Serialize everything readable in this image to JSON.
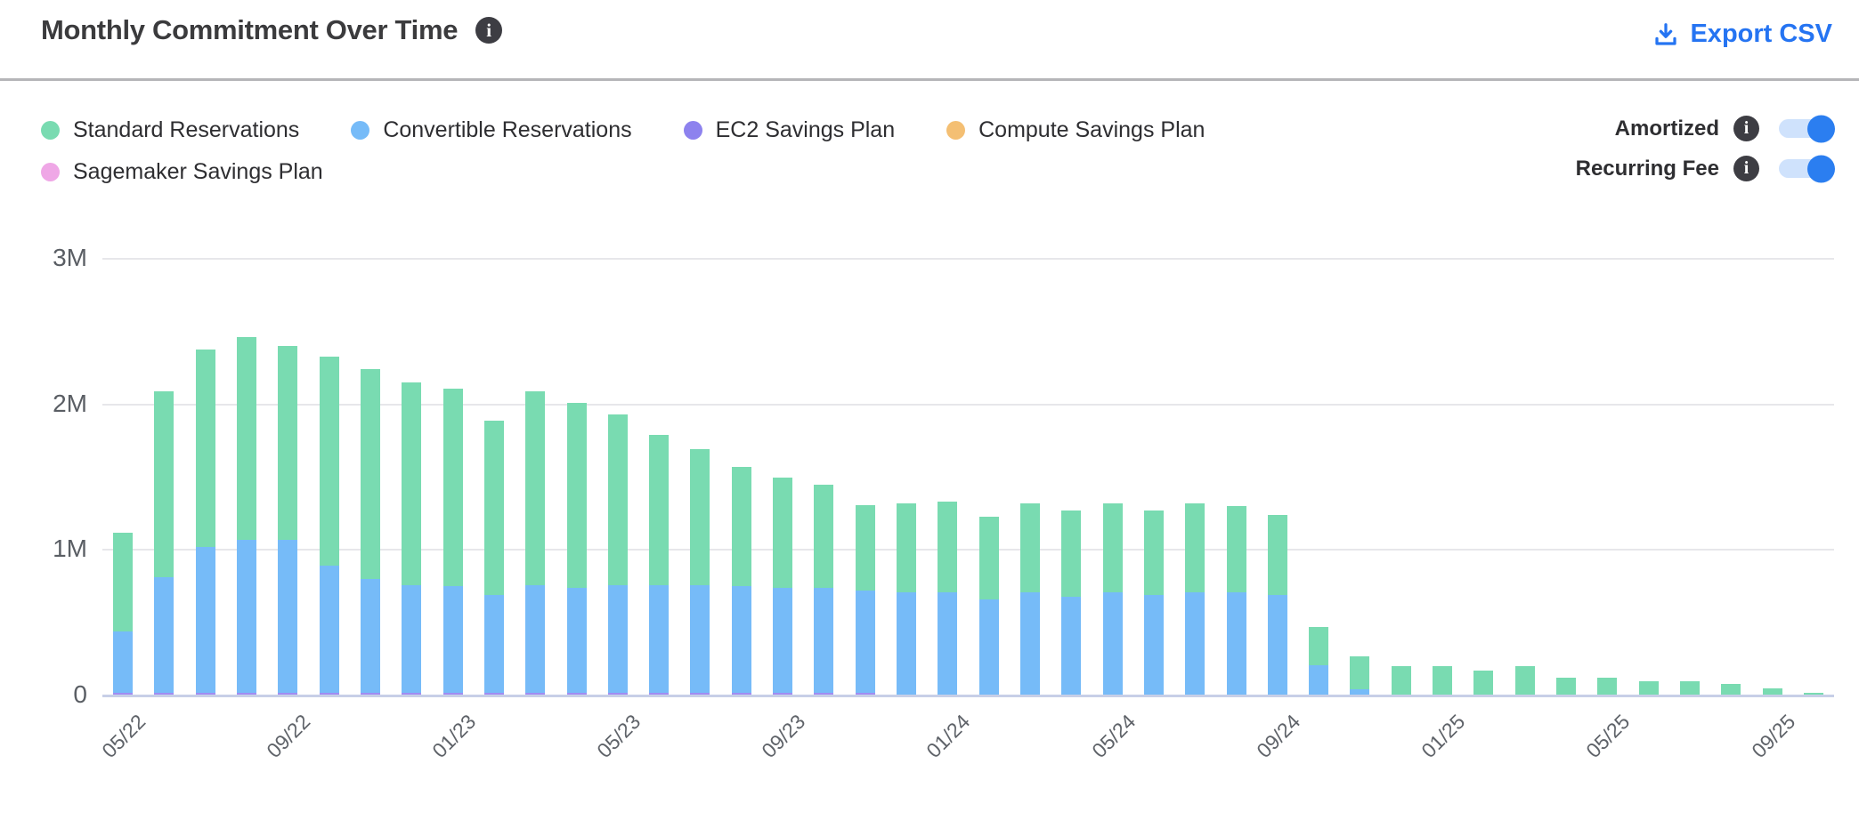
{
  "header": {
    "title": "Monthly Commitment Over Time",
    "export_label": "Export CSV"
  },
  "legend": [
    {
      "label": "Standard Reservations",
      "color": "#79dbb1"
    },
    {
      "label": "Convertible Reservations",
      "color": "#76bbf8"
    },
    {
      "label": "EC2 Savings Plan",
      "color": "#8d82ee"
    },
    {
      "label": "Compute Savings Plan",
      "color": "#f4bf73"
    },
    {
      "label": "Sagemaker Savings Plan",
      "color": "#efa7e6"
    }
  ],
  "toggles": [
    {
      "label": "Amortized",
      "state": "on"
    },
    {
      "label": "Recurring Fee",
      "state": "on"
    }
  ],
  "colors": {
    "accent_blue": "#2574f2",
    "toggle_knob": "#2b7ef0",
    "toggle_track": "#cfe2fc",
    "gridline": "#e7e7ea",
    "axis_baseline": "#c7cfe7",
    "axis_text": "#5f6369"
  },
  "chart_data": {
    "type": "bar",
    "subtype": "stacked",
    "unit": "millions",
    "ymax": 3,
    "y_ticks": [
      {
        "value": 0,
        "label": "0"
      },
      {
        "value": 1,
        "label": "1M"
      },
      {
        "value": 2,
        "label": "2M"
      },
      {
        "value": 3,
        "label": "3M"
      }
    ],
    "x_tick_every": 4,
    "grid": true,
    "legend_position": "top-left",
    "categories": [
      "05/22",
      "06/22",
      "07/22",
      "08/22",
      "09/22",
      "10/22",
      "11/22",
      "12/22",
      "01/23",
      "02/23",
      "03/23",
      "04/23",
      "05/23",
      "06/23",
      "07/23",
      "08/23",
      "09/23",
      "10/23",
      "11/23",
      "12/23",
      "01/24",
      "02/24",
      "03/24",
      "04/24",
      "05/24",
      "06/24",
      "07/24",
      "08/24",
      "09/24",
      "10/24",
      "11/24",
      "12/24",
      "01/25",
      "02/25",
      "03/25",
      "04/25",
      "05/25",
      "06/25",
      "07/25",
      "08/25",
      "09/25",
      "10/25"
    ],
    "series": [
      {
        "name": "Standard Reservations",
        "color": "#79dbb1",
        "values": [
          0.68,
          1.28,
          1.36,
          1.39,
          1.33,
          1.44,
          1.44,
          1.39,
          1.36,
          1.2,
          1.33,
          1.27,
          1.17,
          1.03,
          0.93,
          0.82,
          0.76,
          0.71,
          0.59,
          0.61,
          0.62,
          0.57,
          0.61,
          0.59,
          0.61,
          0.58,
          0.61,
          0.59,
          0.55,
          0.26,
          0.23,
          0.2,
          0.2,
          0.17,
          0.2,
          0.12,
          0.12,
          0.1,
          0.1,
          0.08,
          0.05,
          0.02
        ]
      },
      {
        "name": "Convertible Reservations",
        "color": "#76bbf8",
        "values": [
          0.42,
          0.79,
          1.0,
          1.05,
          1.05,
          0.87,
          0.78,
          0.74,
          0.73,
          0.67,
          0.74,
          0.72,
          0.74,
          0.74,
          0.74,
          0.73,
          0.72,
          0.72,
          0.7,
          0.71,
          0.71,
          0.66,
          0.71,
          0.68,
          0.71,
          0.69,
          0.71,
          0.71,
          0.69,
          0.21,
          0.04,
          0,
          0,
          0,
          0,
          0,
          0,
          0,
          0,
          0,
          0,
          0
        ]
      },
      {
        "name": "EC2 Savings Plan",
        "color": "#a18cf2",
        "values": [
          0.02,
          0.02,
          0.02,
          0.02,
          0.02,
          0.02,
          0.02,
          0.02,
          0.02,
          0.02,
          0.02,
          0.02,
          0.02,
          0.02,
          0.02,
          0.02,
          0.02,
          0.02,
          0.02,
          0,
          0,
          0,
          0,
          0,
          0,
          0,
          0,
          0,
          0,
          0,
          0,
          0,
          0,
          0,
          0,
          0,
          0,
          0,
          0,
          0,
          0,
          0
        ]
      },
      {
        "name": "Compute Savings Plan",
        "color": "#f4bf73",
        "values": [
          0,
          0,
          0,
          0,
          0,
          0,
          0,
          0,
          0,
          0,
          0,
          0,
          0,
          0,
          0,
          0,
          0,
          0,
          0,
          0,
          0,
          0,
          0,
          0,
          0,
          0,
          0,
          0,
          0,
          0,
          0,
          0,
          0,
          0,
          0,
          0,
          0,
          0,
          0,
          0,
          0,
          0
        ]
      },
      {
        "name": "Sagemaker Savings Plan",
        "color": "#efa7e6",
        "values": [
          0,
          0,
          0,
          0,
          0,
          0,
          0,
          0,
          0,
          0,
          0,
          0,
          0,
          0,
          0,
          0,
          0,
          0,
          0,
          0,
          0,
          0,
          0,
          0,
          0,
          0,
          0,
          0,
          0,
          0,
          0,
          0,
          0,
          0,
          0,
          0,
          0,
          0,
          0,
          0,
          0,
          0
        ]
      }
    ]
  }
}
